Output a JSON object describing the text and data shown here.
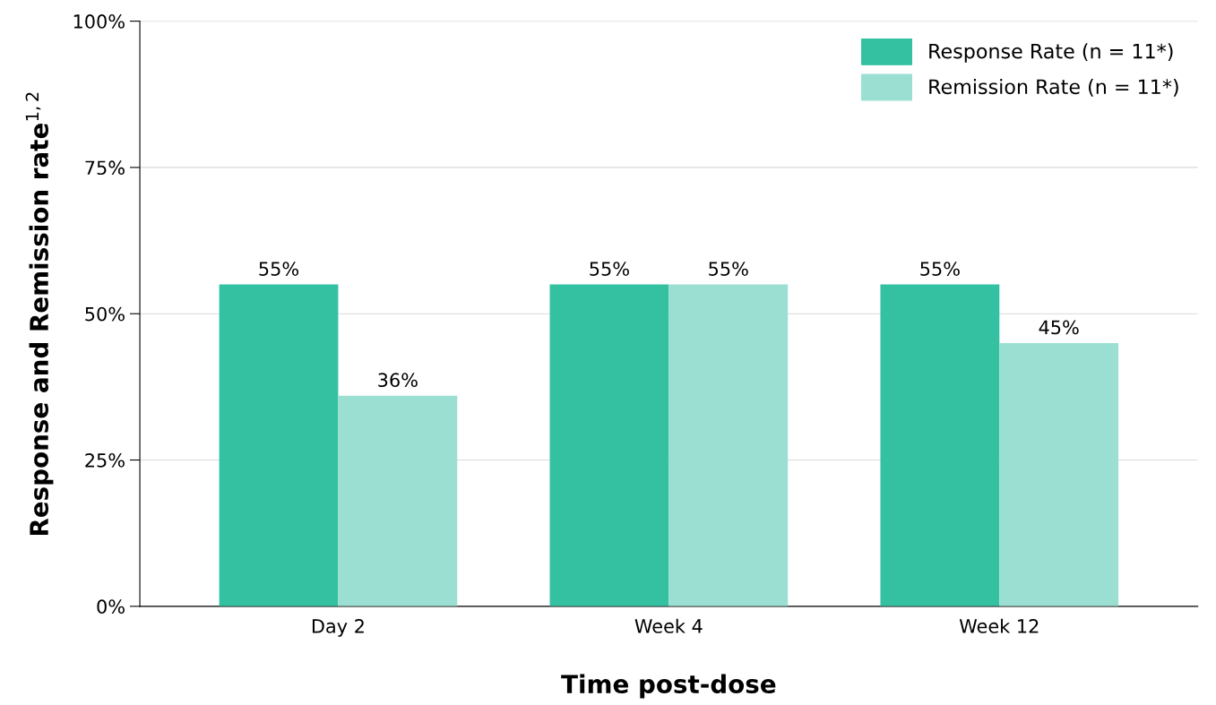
{
  "chart_data": {
    "type": "bar",
    "xlabel": "Time post-dose",
    "ylabel": "Response and Remission rate$^{1,2}$",
    "categories": [
      "Day 2",
      "Week 4",
      "Week 12"
    ],
    "series": [
      {
        "name": "Response Rate (n = 11*)",
        "color": "#33c1a2",
        "values": [
          55,
          55,
          55
        ],
        "value_labels": [
          "55%",
          "55%",
          "55%"
        ]
      },
      {
        "name": "Remission Rate (n = 11*)",
        "color": "#9adfd1",
        "values": [
          36,
          55,
          45
        ],
        "value_labels": [
          "36%",
          "55%",
          "45%"
        ]
      }
    ],
    "ylim": [
      0,
      100
    ],
    "yticks": [
      {
        "value": 0,
        "label": "0%"
      },
      {
        "value": 25,
        "label": "25%"
      },
      {
        "value": 50,
        "label": "50%"
      },
      {
        "value": 75,
        "label": "75%"
      },
      {
        "value": 100,
        "label": "100%"
      }
    ],
    "grid": "y",
    "legend": "top right"
  }
}
